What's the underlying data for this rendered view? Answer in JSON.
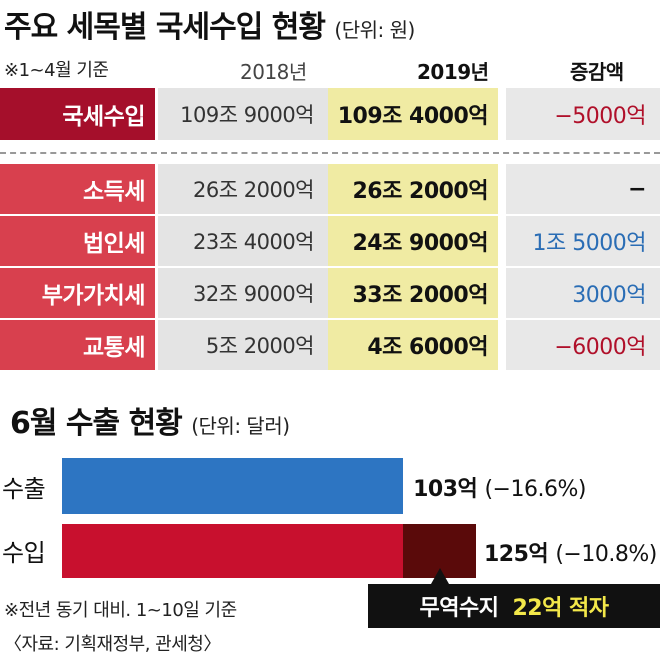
{
  "table": {
    "title": "주요 세목별 국세수입 현황",
    "unit": "(단위: 원)",
    "note": "※1~4월 기준",
    "headers": {
      "y2018": "2018년",
      "y2019": "2019년",
      "diff": "증감액"
    },
    "total": {
      "label": "국세수입",
      "y2018": "109조 9000억",
      "y2019": "109조 4000억",
      "diff": "−5000억",
      "diff_color": "#b0102a"
    },
    "rows": [
      {
        "label": "소득세",
        "y2018": "26조 2000억",
        "y2019": "26조 2000억",
        "diff": "−",
        "diff_color": "#111111"
      },
      {
        "label": "법인세",
        "y2018": "23조 4000억",
        "y2019": "24조 9000억",
        "diff": "1조 5000억",
        "diff_color": "#2a6db5"
      },
      {
        "label": "부가가치세",
        "y2018": "32조 9000억",
        "y2019": "33조 2000억",
        "diff": "3000억",
        "diff_color": "#2a6db5"
      },
      {
        "label": "교통세",
        "y2018": "5조 2000억",
        "y2019": "4조 6000억",
        "diff": "−6000억",
        "diff_color": "#b0102a"
      }
    ]
  },
  "chart_data": {
    "type": "bar",
    "orientation": "horizontal",
    "title": "6월 수출 현황",
    "unit": "(단위: 달러)",
    "categories": [
      "수출",
      "수입"
    ],
    "values": [
      103,
      125
    ],
    "value_labels": [
      "103억",
      "125억"
    ],
    "pct_labels": [
      "(−16.6%)",
      "(−10.8%)"
    ],
    "deficit_segment": {
      "from": 103,
      "to": 125
    },
    "deficit_label": {
      "text": "무역수지",
      "value": "22억 적자"
    },
    "xlim": [
      0,
      125
    ],
    "colors": {
      "export": "#2d75c2",
      "import": "#c8102e",
      "deficit": "#5a0a0a"
    }
  },
  "footnote": "※전년 동기 대비. 1~10일 기준",
  "source": "〈자료: 기획재정부, 관세청〉",
  "colors": {
    "total_label_bg": "#a50f2b",
    "row_label_bg": "#d8404e",
    "y2018_bg": "#e4e4e4",
    "y2019_bg": "#f0eba3",
    "diff_bg": "#e8e8e8"
  }
}
